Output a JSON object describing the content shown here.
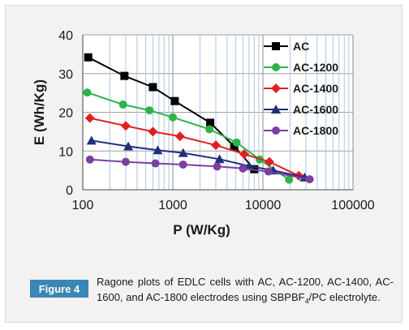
{
  "chart_data": {
    "type": "line",
    "x_scale": "log",
    "xlabel": "P (W/Kg)",
    "ylabel": "E (Wh/Kg)",
    "xlim": [
      100,
      100000
    ],
    "ylim": [
      0,
      40
    ],
    "x_ticks": [
      "100",
      "1000",
      "10000",
      "100000"
    ],
    "y_ticks": [
      "0",
      "10",
      "20",
      "30",
      "40"
    ],
    "grid": true,
    "legend_position": "top-right",
    "series": [
      {
        "name": "AC",
        "color": "#000000",
        "marker": "square",
        "x": [
          115,
          290,
          600,
          1050,
          2600,
          4800,
          8000
        ],
        "y": [
          34.2,
          29.4,
          26.5,
          22.9,
          17.3,
          11.2,
          5.3
        ]
      },
      {
        "name": "AC-1200",
        "color": "#2db34a",
        "marker": "circle",
        "x": [
          112,
          280,
          550,
          1000,
          2550,
          5100,
          9200,
          19500
        ],
        "y": [
          25.1,
          22.0,
          20.5,
          18.7,
          15.6,
          12.2,
          7.8,
          2.6
        ]
      },
      {
        "name": "AC-1400",
        "color": "#e02020",
        "marker": "diamond",
        "x": [
          120,
          300,
          600,
          1200,
          3000,
          6200,
          11800,
          25000
        ],
        "y": [
          18.5,
          16.5,
          15.0,
          13.8,
          11.5,
          9.2,
          7.2,
          3.6
        ]
      },
      {
        "name": "AC-1600",
        "color": "#1f2f7a",
        "marker": "triangle",
        "x": [
          125,
          320,
          680,
          1300,
          3300,
          7000,
          13000,
          29000
        ],
        "y": [
          12.7,
          11.2,
          10.2,
          9.5,
          7.9,
          6.1,
          5.0,
          3.2
        ]
      },
      {
        "name": "AC-1800",
        "color": "#7a3fa0",
        "marker": "circle",
        "x": [
          120,
          300,
          640,
          1300,
          3100,
          6000,
          11500,
          33000
        ],
        "y": [
          7.8,
          7.2,
          6.8,
          6.5,
          6.0,
          5.5,
          4.7,
          2.7
        ]
      }
    ]
  },
  "caption": {
    "badge": "Figure 4",
    "text_before_sub": "Ragone plots of EDLC cells with AC, AC-1200, AC-1400, AC-1600, and AC-1800 electrodes using SBPBF",
    "sub": "4",
    "text_after_sub": "/PC electrolyte."
  }
}
